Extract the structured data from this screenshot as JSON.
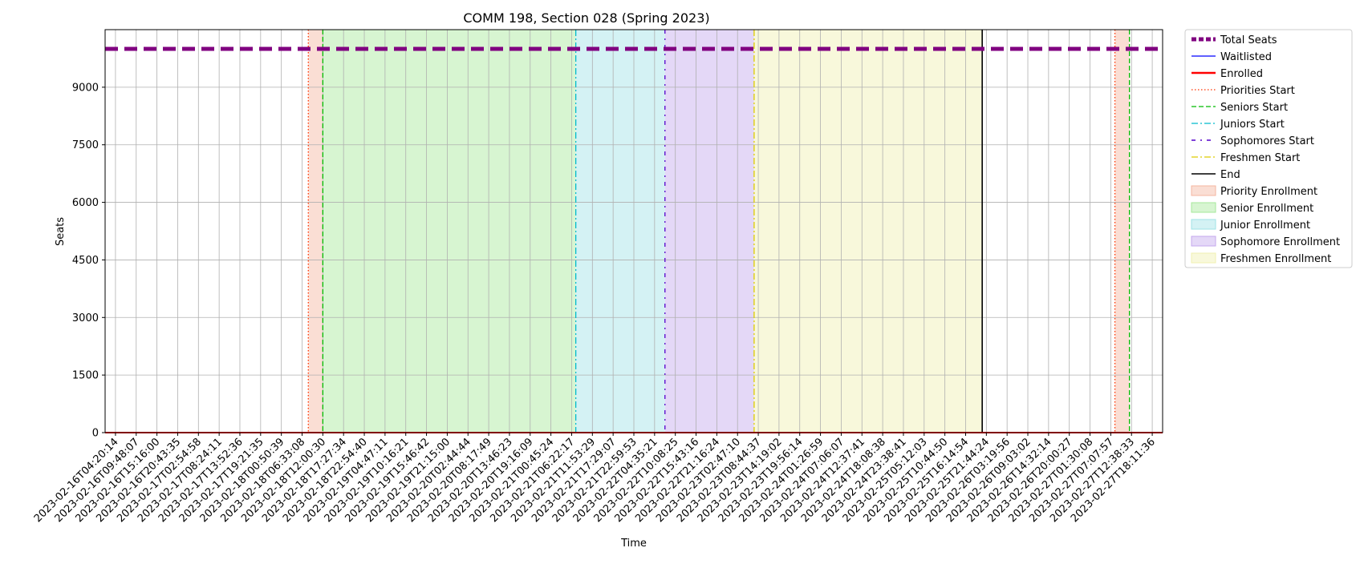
{
  "chart_data": {
    "type": "line",
    "title": "COMM 198, Section 028 (Spring 2023)",
    "xlabel": "Time",
    "ylabel": "Seats",
    "ylim": [
      0,
      10500
    ],
    "yticks": [
      0,
      1500,
      3000,
      4500,
      6000,
      7500,
      9000
    ],
    "grid": true,
    "legend_position": "outside right, top",
    "x_categories": [
      "2023-02-16T04:20:14",
      "2023-02-16T09:48:07",
      "2023-02-16T15:16:00",
      "2023-02-16T20:43:35",
      "2023-02-17T02:54:58",
      "2023-02-17T08:24:11",
      "2023-02-17T13:52:36",
      "2023-02-17T19:21:35",
      "2023-02-18T00:50:39",
      "2023-02-18T06:33:08",
      "2023-02-18T12:00:30",
      "2023-02-18T17:27:34",
      "2023-02-18T22:54:40",
      "2023-02-19T04:47:11",
      "2023-02-19T10:16:21",
      "2023-02-19T15:46:42",
      "2023-02-19T21:15:00",
      "2023-02-20T02:44:44",
      "2023-02-20T08:17:49",
      "2023-02-20T13:46:23",
      "2023-02-20T19:16:09",
      "2023-02-21T00:45:24",
      "2023-02-21T06:22:17",
      "2023-02-21T11:53:29",
      "2023-02-21T17:29:07",
      "2023-02-21T22:59:53",
      "2023-02-22T04:35:21",
      "2023-02-22T10:08:25",
      "2023-02-22T15:43:16",
      "2023-02-22T21:16:24",
      "2023-02-23T02:47:10",
      "2023-02-23T08:44:37",
      "2023-02-23T14:19:02",
      "2023-02-23T19:56:14",
      "2023-02-24T01:26:59",
      "2023-02-24T07:06:07",
      "2023-02-24T12:37:41",
      "2023-02-24T18:08:38",
      "2023-02-24T23:38:41",
      "2023-02-25T05:12:03",
      "2023-02-25T10:44:50",
      "2023-02-25T16:14:54",
      "2023-02-25T21:44:24",
      "2023-02-26T03:19:56",
      "2023-02-26T09:03:02",
      "2023-02-26T14:32:14",
      "2023-02-26T20:00:27",
      "2023-02-27T01:30:08",
      "2023-02-27T07:07:57",
      "2023-02-27T12:38:33",
      "2023-02-27T18:11:36"
    ],
    "series": [
      {
        "name": "Total Seats",
        "value": 10000,
        "color": "#800080",
        "style": "thick-dashed"
      },
      {
        "name": "Waitlisted",
        "value": 0,
        "color": "#0000ff",
        "style": "solid"
      },
      {
        "name": "Enrolled",
        "value": 0,
        "color": "#ff0000",
        "style": "solid-thick"
      }
    ],
    "event_lines": [
      {
        "name": "Priorities Start",
        "x": [
          9.3,
          48.2
        ],
        "color": "#ff3300",
        "style": "dotted"
      },
      {
        "name": "Seniors Start",
        "x": [
          10.0,
          48.9
        ],
        "color": "#00bb00",
        "style": "dashed"
      },
      {
        "name": "Juniors Start",
        "x": [
          22.2
        ],
        "color": "#00bbcc",
        "style": "dashdot"
      },
      {
        "name": "Sophomores Start",
        "x": [
          26.5
        ],
        "color": "#5500cc",
        "style": "densedashdot"
      },
      {
        "name": "Freshmen Start",
        "x": [
          30.8
        ],
        "color": "#ddcc00",
        "style": "dashdot"
      },
      {
        "name": "End",
        "x": [
          41.8
        ],
        "color": "#000000",
        "style": "solid"
      }
    ],
    "regions": [
      {
        "name": "Priority Enrollment",
        "spans": [
          [
            9.3,
            10.0
          ],
          [
            48.2,
            48.9
          ]
        ],
        "color": "#f4b6a0"
      },
      {
        "name": "Senior Enrollment",
        "spans": [
          [
            10.0,
            22.2
          ]
        ],
        "color": "#a6e89a"
      },
      {
        "name": "Junior Enrollment",
        "spans": [
          [
            22.2,
            26.5
          ]
        ],
        "color": "#9fe3e6"
      },
      {
        "name": "Sophomore Enrollment",
        "spans": [
          [
            26.5,
            30.8
          ]
        ],
        "color": "#c4a8ee"
      },
      {
        "name": "Freshmen Enrollment",
        "spans": [
          [
            30.8,
            41.8
          ]
        ],
        "color": "#f0f0b0"
      }
    ],
    "legend": [
      {
        "label": "Total Seats",
        "kind": "line",
        "color": "#800080",
        "dash": "6,3",
        "width": 5
      },
      {
        "label": "Waitlisted",
        "kind": "line",
        "color": "#0000ff",
        "dash": "",
        "width": 1.3
      },
      {
        "label": "Enrolled",
        "kind": "line",
        "color": "#ff0000",
        "dash": "",
        "width": 2.5
      },
      {
        "label": "Priorities Start",
        "kind": "line",
        "color": "#ff3300",
        "dash": "1.5,2.5",
        "width": 1.3
      },
      {
        "label": "Seniors Start",
        "kind": "line",
        "color": "#00bb00",
        "dash": "6,3",
        "width": 1.3
      },
      {
        "label": "Juniors Start",
        "kind": "line",
        "color": "#00bbcc",
        "dash": "8,3,2,3",
        "width": 1.3
      },
      {
        "label": "Sophomores Start",
        "kind": "line",
        "color": "#5500cc",
        "dash": "5,6,2,6",
        "width": 1.6
      },
      {
        "label": "Freshmen Start",
        "kind": "line",
        "color": "#ddcc00",
        "dash": "8,3,2,3",
        "width": 1.3
      },
      {
        "label": "End",
        "kind": "line",
        "color": "#000000",
        "dash": "",
        "width": 1.6
      },
      {
        "label": "Priority Enrollment",
        "kind": "patch",
        "color": "#f4b6a0"
      },
      {
        "label": "Senior Enrollment",
        "kind": "patch",
        "color": "#a6e89a"
      },
      {
        "label": "Junior Enrollment",
        "kind": "patch",
        "color": "#9fe3e6"
      },
      {
        "label": "Sophomore Enrollment",
        "kind": "patch",
        "color": "#c4a8ee"
      },
      {
        "label": "Freshmen Enrollment",
        "kind": "patch",
        "color": "#f0f0b0"
      }
    ]
  }
}
